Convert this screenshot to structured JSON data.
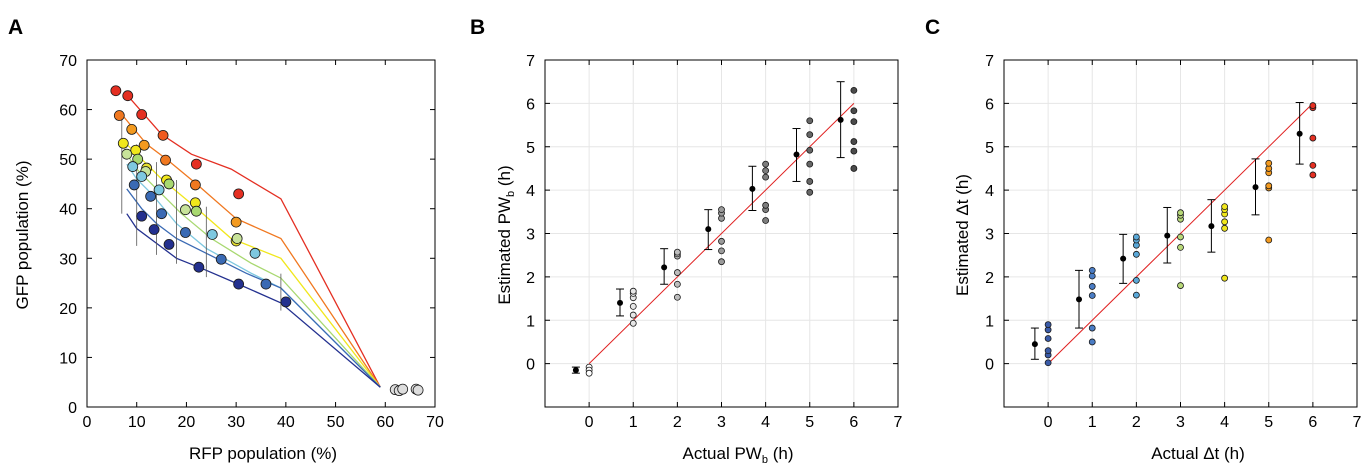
{
  "chart_data": [
    {
      "panel": "A",
      "type": "scatter",
      "xlabel": "RFP population (%)",
      "ylabel": "GFP population (%)",
      "xlim": [
        0,
        70
      ],
      "ylim": [
        0,
        70
      ],
      "xticks": [
        0,
        10,
        20,
        30,
        40,
        50,
        60,
        70
      ],
      "yticks": [
        0,
        10,
        20,
        30,
        40,
        50,
        60,
        70
      ],
      "grid": false,
      "colors": [
        "#1f2c8f",
        "#3a6ab4",
        "#7ec8e0",
        "#c8e39a",
        "#f1e71c",
        "#f39a1f",
        "#e42f22"
      ],
      "curves": [
        {
          "color": "#e42f22",
          "points": [
            [
              8,
              63
            ],
            [
              15,
              55
            ],
            [
              21,
              51
            ],
            [
              29,
              48
            ],
            [
              39,
              42
            ],
            [
              59,
              4
            ]
          ]
        },
        {
          "color": "#f07820",
          "points": [
            [
              7,
              59
            ],
            [
              12,
              53
            ],
            [
              16,
              50
            ],
            [
              22,
              45
            ],
            [
              30,
              38
            ],
            [
              39,
              34
            ],
            [
              59,
              4
            ]
          ]
        },
        {
          "color": "#f1e71c",
          "points": [
            [
              7,
              54
            ],
            [
              10,
              51
            ],
            [
              15,
              46
            ],
            [
              21,
              41
            ],
            [
              29,
              34
            ],
            [
              39,
              30
            ],
            [
              59,
              4
            ]
          ]
        },
        {
          "color": "#a8d870",
          "points": [
            [
              8,
              51
            ],
            [
              10,
              48
            ],
            [
              14,
              44
            ],
            [
              19,
              39
            ],
            [
              25,
              34
            ],
            [
              33,
              29
            ],
            [
              39,
              26
            ],
            [
              59,
              4
            ]
          ]
        },
        {
          "color": "#7ec8e0",
          "points": [
            [
              8,
              49
            ],
            [
              10,
              46
            ],
            [
              13,
              43
            ],
            [
              18,
              37
            ],
            [
              24,
              32
            ],
            [
              33,
              27
            ],
            [
              39,
              24
            ],
            [
              59,
              4
            ]
          ]
        },
        {
          "color": "#3a6ab4",
          "points": [
            [
              8,
              44
            ],
            [
              11,
              40
            ],
            [
              14,
              37
            ],
            [
              18,
              34
            ],
            [
              24,
              31
            ],
            [
              32,
              27
            ],
            [
              39,
              24
            ],
            [
              59,
              4
            ]
          ]
        },
        {
          "color": "#23308f",
          "points": [
            [
              8,
              39
            ],
            [
              10,
              36
            ],
            [
              14,
              33
            ],
            [
              18,
              30
            ],
            [
              23,
              28
            ],
            [
              30,
              25
            ],
            [
              39,
              21
            ],
            [
              59,
              4
            ]
          ]
        }
      ],
      "points": [
        {
          "x": 5.8,
          "y": 63.8,
          "c": "#e42f22"
        },
        {
          "x": 8.2,
          "y": 62.8,
          "c": "#e42f22"
        },
        {
          "x": 11.0,
          "y": 59.0,
          "c": "#e42f22"
        },
        {
          "x": 15.3,
          "y": 54.8,
          "c": "#f05a20"
        },
        {
          "x": 22.0,
          "y": 49.0,
          "c": "#e42f22"
        },
        {
          "x": 30.5,
          "y": 43.0,
          "c": "#e42f22"
        },
        {
          "x": 6.5,
          "y": 58.8,
          "c": "#f07820"
        },
        {
          "x": 9.0,
          "y": 56.0,
          "c": "#f39a1f"
        },
        {
          "x": 11.5,
          "y": 52.8,
          "c": "#f39a1f"
        },
        {
          "x": 15.8,
          "y": 49.8,
          "c": "#f07820"
        },
        {
          "x": 21.8,
          "y": 44.8,
          "c": "#f07820"
        },
        {
          "x": 30.0,
          "y": 37.3,
          "c": "#f39a1f"
        },
        {
          "x": 7.3,
          "y": 53.2,
          "c": "#f1e71c"
        },
        {
          "x": 9.8,
          "y": 51.8,
          "c": "#f1e71c"
        },
        {
          "x": 12.0,
          "y": 48.2,
          "c": "#e8e030"
        },
        {
          "x": 16.0,
          "y": 45.8,
          "c": "#f1e71c"
        },
        {
          "x": 21.8,
          "y": 41.2,
          "c": "#f1e71c"
        },
        {
          "x": 30.0,
          "y": 33.5,
          "c": "#e8e030"
        },
        {
          "x": 8.0,
          "y": 51.0,
          "c": "#c8e39a"
        },
        {
          "x": 10.2,
          "y": 50.0,
          "c": "#a8d870"
        },
        {
          "x": 11.8,
          "y": 47.5,
          "c": "#c8e39a"
        },
        {
          "x": 16.5,
          "y": 45.0,
          "c": "#a8d870"
        },
        {
          "x": 19.8,
          "y": 39.8,
          "c": "#c8e39a"
        },
        {
          "x": 22.0,
          "y": 39.5,
          "c": "#a8d870"
        },
        {
          "x": 9.2,
          "y": 48.5,
          "c": "#7ec8e0"
        },
        {
          "x": 11.0,
          "y": 46.5,
          "c": "#7ec8e0"
        },
        {
          "x": 14.5,
          "y": 43.8,
          "c": "#7ec8e0"
        },
        {
          "x": 25.2,
          "y": 34.8,
          "c": "#7ec8e0"
        },
        {
          "x": 33.8,
          "y": 31.0,
          "c": "#7ec8e0"
        },
        {
          "x": 30.2,
          "y": 34.0,
          "c": "#c8e39a"
        },
        {
          "x": 9.5,
          "y": 44.8,
          "c": "#3a6ab4"
        },
        {
          "x": 12.8,
          "y": 42.5,
          "c": "#3a6ab4"
        },
        {
          "x": 15.0,
          "y": 39.0,
          "c": "#3a6ab4"
        },
        {
          "x": 19.8,
          "y": 35.2,
          "c": "#3a6ab4"
        },
        {
          "x": 27.0,
          "y": 29.8,
          "c": "#3a6ab4"
        },
        {
          "x": 36.0,
          "y": 24.8,
          "c": "#3a6ab4"
        },
        {
          "x": 11.0,
          "y": 38.5,
          "c": "#23308f"
        },
        {
          "x": 13.5,
          "y": 35.8,
          "c": "#23308f"
        },
        {
          "x": 16.5,
          "y": 32.8,
          "c": "#23308f"
        },
        {
          "x": 22.5,
          "y": 28.2,
          "c": "#23308f"
        },
        {
          "x": 30.5,
          "y": 24.8,
          "c": "#23308f"
        },
        {
          "x": 40.0,
          "y": 21.2,
          "c": "#23308f"
        },
        {
          "x": 62.0,
          "y": 3.5,
          "c": "#dddddd"
        },
        {
          "x": 62.8,
          "y": 3.3,
          "c": "#dddddd"
        },
        {
          "x": 63.5,
          "y": 3.6,
          "c": "#dddddd"
        },
        {
          "x": 66.2,
          "y": 3.6,
          "c": "#dddddd"
        },
        {
          "x": 66.6,
          "y": 3.4,
          "c": "#dddddd"
        }
      ]
    },
    {
      "panel": "B",
      "type": "scatter",
      "xlabel": "Actual PW",
      "xlabel_sub": "b",
      "xlabel_suffix": " (h)",
      "ylabel": "Estimated PW",
      "ylabel_sub": "b",
      "ylabel_suffix": " (h)",
      "xlim": [
        -1,
        7
      ],
      "ylim": [
        -1,
        7
      ],
      "xticks": [
        0,
        1,
        2,
        3,
        4,
        5,
        6,
        7
      ],
      "yticks": [
        0,
        1,
        2,
        3,
        4,
        5,
        6,
        7
      ],
      "grid": true,
      "identity_line": {
        "from": [
          0,
          0
        ],
        "to": [
          6,
          6
        ],
        "color": "#e02020"
      },
      "errorbars": [
        {
          "x": -0.3,
          "mean": -0.15,
          "low": -0.22,
          "high": -0.08
        },
        {
          "x": 0.7,
          "mean": 1.4,
          "low": 1.1,
          "high": 1.72
        },
        {
          "x": 1.7,
          "mean": 2.22,
          "low": 1.83,
          "high": 2.65
        },
        {
          "x": 2.7,
          "mean": 3.1,
          "low": 2.63,
          "high": 3.55
        },
        {
          "x": 3.7,
          "mean": 4.03,
          "low": 3.53,
          "high": 4.55
        },
        {
          "x": 4.7,
          "mean": 4.82,
          "low": 4.2,
          "high": 5.42
        },
        {
          "x": 5.7,
          "mean": 5.62,
          "low": 4.75,
          "high": 6.5
        }
      ],
      "points": [
        {
          "x": 0,
          "y": -0.08,
          "c": "#ffffff"
        },
        {
          "x": 0,
          "y": -0.15,
          "c": "#ffffff"
        },
        {
          "x": 0,
          "y": -0.22,
          "c": "#ffffff"
        },
        {
          "x": 1,
          "y": 0.93,
          "c": "#e6e6e6"
        },
        {
          "x": 1,
          "y": 1.12,
          "c": "#e6e6e6"
        },
        {
          "x": 1,
          "y": 1.32,
          "c": "#e6e6e6"
        },
        {
          "x": 1,
          "y": 1.52,
          "c": "#e6e6e6"
        },
        {
          "x": 1,
          "y": 1.62,
          "c": "#e6e6e6"
        },
        {
          "x": 1,
          "y": 1.67,
          "c": "#e6e6e6"
        },
        {
          "x": 2,
          "y": 1.53,
          "c": "#bdbdbd"
        },
        {
          "x": 2,
          "y": 1.83,
          "c": "#bdbdbd"
        },
        {
          "x": 2,
          "y": 2.1,
          "c": "#bdbdbd"
        },
        {
          "x": 2,
          "y": 2.48,
          "c": "#bdbdbd"
        },
        {
          "x": 2,
          "y": 2.53,
          "c": "#bdbdbd"
        },
        {
          "x": 2,
          "y": 2.57,
          "c": "#bdbdbd"
        },
        {
          "x": 3,
          "y": 2.35,
          "c": "#9a9a9a"
        },
        {
          "x": 3,
          "y": 2.6,
          "c": "#9a9a9a"
        },
        {
          "x": 3,
          "y": 2.82,
          "c": "#9a9a9a"
        },
        {
          "x": 3,
          "y": 3.35,
          "c": "#9a9a9a"
        },
        {
          "x": 3,
          "y": 3.47,
          "c": "#9a9a9a"
        },
        {
          "x": 3,
          "y": 3.55,
          "c": "#9a9a9a"
        },
        {
          "x": 4,
          "y": 3.3,
          "c": "#7d7d7d"
        },
        {
          "x": 4,
          "y": 3.55,
          "c": "#7d7d7d"
        },
        {
          "x": 4,
          "y": 3.65,
          "c": "#7d7d7d"
        },
        {
          "x": 4,
          "y": 4.3,
          "c": "#7d7d7d"
        },
        {
          "x": 4,
          "y": 4.45,
          "c": "#7d7d7d"
        },
        {
          "x": 4,
          "y": 4.6,
          "c": "#7d7d7d"
        },
        {
          "x": 5,
          "y": 3.95,
          "c": "#666666"
        },
        {
          "x": 5,
          "y": 4.2,
          "c": "#666666"
        },
        {
          "x": 5,
          "y": 4.6,
          "c": "#666666"
        },
        {
          "x": 5,
          "y": 4.92,
          "c": "#666666"
        },
        {
          "x": 5,
          "y": 5.28,
          "c": "#666666"
        },
        {
          "x": 5,
          "y": 5.6,
          "c": "#666666"
        },
        {
          "x": 6,
          "y": 4.5,
          "c": "#4a4a4a"
        },
        {
          "x": 6,
          "y": 4.9,
          "c": "#4a4a4a"
        },
        {
          "x": 6,
          "y": 5.12,
          "c": "#4a4a4a"
        },
        {
          "x": 6,
          "y": 5.58,
          "c": "#4a4a4a"
        },
        {
          "x": 6,
          "y": 5.83,
          "c": "#4a4a4a"
        },
        {
          "x": 6,
          "y": 6.3,
          "c": "#4a4a4a"
        }
      ]
    },
    {
      "panel": "C",
      "type": "scatter",
      "xlabel": "Actual Δt (h)",
      "ylabel": "Estimated Δt (h)",
      "xlim": [
        -1,
        7
      ],
      "ylim": [
        -1,
        7
      ],
      "xticks": [
        0,
        1,
        2,
        3,
        4,
        5,
        6,
        7
      ],
      "yticks": [
        0,
        1,
        2,
        3,
        4,
        5,
        6,
        7
      ],
      "grid": true,
      "identity_line": {
        "from": [
          0,
          0
        ],
        "to": [
          6,
          6
        ],
        "color": "#e02020"
      },
      "errorbars": [
        {
          "x": -0.3,
          "mean": 0.45,
          "low": 0.1,
          "high": 0.82
        },
        {
          "x": 0.7,
          "mean": 1.48,
          "low": 0.82,
          "high": 2.15
        },
        {
          "x": 1.7,
          "mean": 2.42,
          "low": 1.85,
          "high": 2.98
        },
        {
          "x": 2.7,
          "mean": 2.95,
          "low": 2.32,
          "high": 3.6
        },
        {
          "x": 3.7,
          "mean": 3.17,
          "low": 2.57,
          "high": 3.78
        },
        {
          "x": 4.7,
          "mean": 4.07,
          "low": 3.43,
          "high": 4.72
        },
        {
          "x": 5.7,
          "mean": 5.3,
          "low": 4.6,
          "high": 6.02
        }
      ],
      "points": [
        {
          "x": 0,
          "y": 0.02,
          "c": "#3a5ba8"
        },
        {
          "x": 0,
          "y": 0.2,
          "c": "#3a5ba8"
        },
        {
          "x": 0,
          "y": 0.3,
          "c": "#3a5ba8"
        },
        {
          "x": 0,
          "y": 0.58,
          "c": "#3a5ba8"
        },
        {
          "x": 0,
          "y": 0.78,
          "c": "#3a5ba8"
        },
        {
          "x": 0,
          "y": 0.9,
          "c": "#3a5ba8"
        },
        {
          "x": 1,
          "y": 0.5,
          "c": "#4a7cc4"
        },
        {
          "x": 1,
          "y": 0.82,
          "c": "#4a7cc4"
        },
        {
          "x": 1,
          "y": 1.57,
          "c": "#4a7cc4"
        },
        {
          "x": 1,
          "y": 1.78,
          "c": "#4a7cc4"
        },
        {
          "x": 1,
          "y": 2.02,
          "c": "#4a7cc4"
        },
        {
          "x": 1,
          "y": 2.15,
          "c": "#4a7cc4"
        },
        {
          "x": 2,
          "y": 1.58,
          "c": "#5aa8d8"
        },
        {
          "x": 2,
          "y": 1.92,
          "c": "#5aa8d8"
        },
        {
          "x": 2,
          "y": 2.52,
          "c": "#5aa8d8"
        },
        {
          "x": 2,
          "y": 2.73,
          "c": "#5aa8d8"
        },
        {
          "x": 2,
          "y": 2.85,
          "c": "#5aa8d8"
        },
        {
          "x": 2,
          "y": 2.92,
          "c": "#5aa8d8"
        },
        {
          "x": 3,
          "y": 1.8,
          "c": "#b8d878"
        },
        {
          "x": 3,
          "y": 2.68,
          "c": "#b8d878"
        },
        {
          "x": 3,
          "y": 2.92,
          "c": "#b8d878"
        },
        {
          "x": 3,
          "y": 3.33,
          "c": "#b8d878"
        },
        {
          "x": 3,
          "y": 3.42,
          "c": "#b8d878"
        },
        {
          "x": 3,
          "y": 3.48,
          "c": "#b8d878"
        },
        {
          "x": 4,
          "y": 1.97,
          "c": "#f1e71c"
        },
        {
          "x": 4,
          "y": 3.12,
          "c": "#f1e71c"
        },
        {
          "x": 4,
          "y": 3.27,
          "c": "#f1e71c"
        },
        {
          "x": 4,
          "y": 3.45,
          "c": "#f1e71c"
        },
        {
          "x": 4,
          "y": 3.55,
          "c": "#f1e71c"
        },
        {
          "x": 4,
          "y": 3.62,
          "c": "#f1e71c"
        },
        {
          "x": 5,
          "y": 2.85,
          "c": "#f39a1f"
        },
        {
          "x": 5,
          "y": 4.05,
          "c": "#f39a1f"
        },
        {
          "x": 5,
          "y": 4.1,
          "c": "#f39a1f"
        },
        {
          "x": 5,
          "y": 4.4,
          "c": "#f39a1f"
        },
        {
          "x": 5,
          "y": 4.5,
          "c": "#f39a1f"
        },
        {
          "x": 5,
          "y": 4.62,
          "c": "#f39a1f"
        },
        {
          "x": 6,
          "y": 4.35,
          "c": "#e42f22"
        },
        {
          "x": 6,
          "y": 4.57,
          "c": "#e42f22"
        },
        {
          "x": 6,
          "y": 5.2,
          "c": "#e42f22"
        },
        {
          "x": 6,
          "y": 5.9,
          "c": "#e42f22"
        },
        {
          "x": 6,
          "y": 5.95,
          "c": "#e42f22"
        }
      ]
    }
  ]
}
